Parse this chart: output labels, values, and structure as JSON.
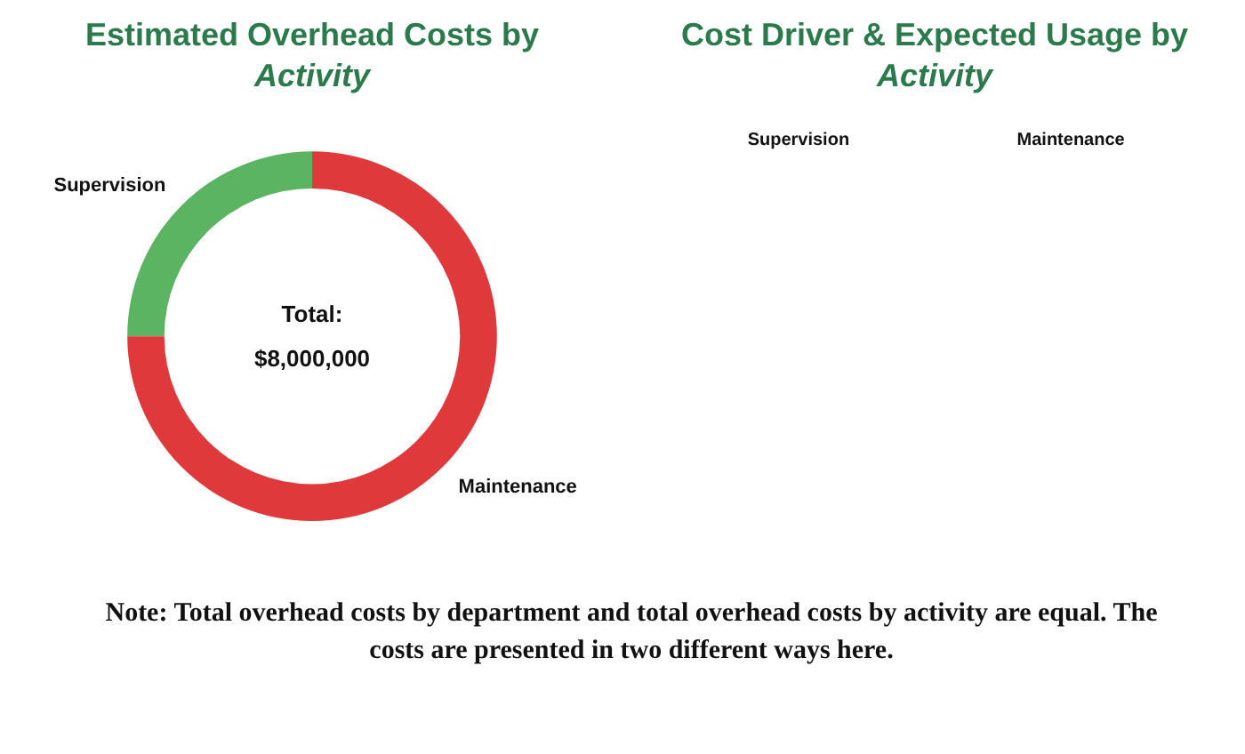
{
  "chart_data": [
    {
      "type": "donut",
      "title": "Estimated Overhead Costs by Activity",
      "categories": [
        "Supervision",
        "Maintenance"
      ],
      "values": [
        25,
        75
      ],
      "colors": [
        "#5bb462",
        "#e0393b"
      ],
      "annotations": [
        "Total:\n$8,000,000"
      ]
    },
    {
      "type": "other",
      "title": "Cost Driver & Expected Usage by Activity",
      "categories": [
        "Supervision",
        "Maintenance"
      ],
      "annotations": [
        "Note: Total overhead costs by department and total overhead costs by activity are equal. The costs are presented in two different ways here."
      ]
    }
  ]
}
